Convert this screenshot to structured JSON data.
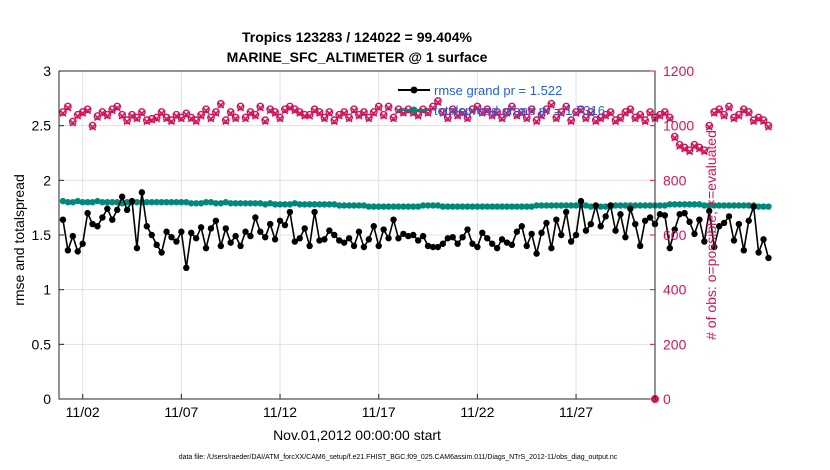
{
  "chart_data": {
    "type": "line",
    "title_line1": "Tropics 123283 / 124022 = 99.404%",
    "title_line2": "MARINE_SFC_ALTIMETER @ 1 surface",
    "xlabel": "Nov.01,2012 00:00:00 start",
    "ylabel_left": "rmse and totalspread",
    "ylabel_right": "# of obs: o=possible; ×=evaluated",
    "footer": "data file: /Users/raeder/DAI/ATM_forcXX/CAM6_setup/f.e21.FHIST_BGC.f09_025.CAM6assim.011/Diags_NTrS_2012-11/obs_diag_output.nc",
    "x_tick_labels": [
      "11/02",
      "11/07",
      "11/12",
      "11/17",
      "11/22",
      "11/27"
    ],
    "x_tick_days": [
      2,
      7,
      12,
      17,
      22,
      27
    ],
    "xlim_days": [
      0.8,
      31.0
    ],
    "ylim_left": [
      0,
      3
    ],
    "yticks_left": [
      "0",
      "0.5",
      "1",
      "1.5",
      "2",
      "2.5",
      "3"
    ],
    "ylim_right": [
      0,
      1200
    ],
    "yticks_right": [
      "0",
      "200",
      "400",
      "600",
      "800",
      "1000",
      "1200"
    ],
    "legend": {
      "placement": "top-right",
      "entries": [
        "rmse grand pr = 1.522",
        "totalspread grand pr = 1.7316"
      ]
    },
    "colors": {
      "rmse": "#000000",
      "totalspread": "#00897b",
      "obs": "#d4145a",
      "legend_text": "#1f5fe0",
      "grid": "#e0e0e0"
    },
    "samples_per_day": 4,
    "x_start_day": 1.0,
    "series": [
      {
        "name": "rmse",
        "axis": "left",
        "values": [
          1.64,
          1.36,
          1.49,
          1.35,
          1.42,
          1.7,
          1.6,
          1.58,
          1.66,
          1.74,
          1.64,
          1.73,
          1.85,
          1.73,
          1.81,
          1.38,
          1.89,
          1.58,
          1.5,
          1.41,
          1.34,
          1.53,
          1.48,
          1.44,
          1.53,
          1.2,
          1.52,
          1.47,
          1.57,
          1.38,
          1.56,
          1.63,
          1.4,
          1.56,
          1.43,
          1.49,
          1.4,
          1.53,
          1.49,
          1.66,
          1.53,
          1.48,
          1.6,
          1.46,
          1.63,
          1.59,
          1.71,
          1.44,
          1.47,
          1.56,
          1.4,
          1.71,
          1.45,
          1.46,
          1.54,
          1.5,
          1.45,
          1.43,
          1.47,
          1.4,
          1.53,
          1.39,
          1.46,
          1.58,
          1.4,
          1.55,
          1.47,
          1.64,
          1.47,
          1.51,
          1.49,
          1.5,
          1.45,
          1.49,
          1.4,
          1.39,
          1.39,
          1.42,
          1.47,
          1.48,
          1.42,
          1.48,
          1.55,
          1.42,
          1.39,
          1.52,
          1.47,
          1.42,
          1.38,
          1.46,
          1.43,
          1.41,
          1.53,
          1.58,
          1.4,
          1.51,
          1.33,
          1.52,
          1.61,
          1.38,
          1.64,
          1.5,
          1.71,
          1.44,
          1.5,
          1.81,
          1.54,
          1.6,
          1.77,
          1.58,
          1.67,
          1.77,
          1.54,
          1.69,
          1.48,
          1.74,
          1.6,
          1.4,
          1.63,
          1.66,
          1.6,
          1.69,
          1.68,
          1.38,
          1.55,
          1.69,
          1.7,
          1.62,
          1.51,
          1.64,
          1.44,
          1.72,
          1.39,
          1.58,
          1.61,
          1.67,
          1.45,
          1.6,
          1.36,
          1.63,
          1.76,
          1.34,
          1.46,
          1.29
        ],
        "markers": [
          1,
          1,
          1,
          1,
          1,
          1,
          1,
          1,
          1,
          1,
          1,
          1,
          1,
          1,
          1,
          1,
          1,
          1,
          1,
          1,
          1,
          1,
          1,
          1,
          1,
          1,
          1,
          1,
          1,
          1,
          1,
          1,
          1,
          1,
          1,
          1,
          1,
          1,
          1,
          1,
          1,
          1,
          1,
          1,
          1,
          1,
          1,
          1,
          1,
          1,
          1,
          1,
          1,
          1,
          1,
          1,
          1,
          1,
          1,
          1,
          1,
          1,
          1,
          1,
          1,
          1,
          1,
          1,
          1,
          1,
          1,
          1,
          1,
          1,
          1,
          1,
          1,
          1,
          1,
          1,
          1,
          1,
          1,
          1,
          1,
          1,
          1,
          1,
          1,
          1,
          1,
          1,
          1,
          1,
          1,
          1,
          1,
          1,
          1,
          1,
          1,
          1,
          1,
          1,
          1,
          1,
          1,
          1,
          1,
          1,
          1,
          1,
          1,
          1,
          1,
          1,
          1,
          1,
          1,
          1,
          1,
          1,
          1,
          1,
          1,
          1,
          1,
          1,
          1,
          1,
          1,
          1,
          1,
          1,
          1,
          1,
          1,
          1,
          1,
          1,
          1,
          1,
          1,
          1
        ]
      },
      {
        "name": "totalspread",
        "axis": "left",
        "values": [
          1.81,
          1.8,
          1.8,
          1.81,
          1.8,
          1.8,
          1.8,
          1.81,
          1.8,
          1.8,
          1.8,
          1.8,
          1.79,
          1.8,
          1.8,
          1.8,
          1.8,
          1.8,
          1.8,
          1.8,
          1.8,
          1.8,
          1.8,
          1.8,
          1.8,
          1.8,
          1.79,
          1.79,
          1.79,
          1.8,
          1.8,
          1.79,
          1.79,
          1.8,
          1.79,
          1.79,
          1.79,
          1.79,
          1.79,
          1.79,
          1.79,
          1.78,
          1.79,
          1.78,
          1.78,
          1.78,
          1.78,
          1.79,
          1.78,
          1.78,
          1.78,
          1.78,
          1.78,
          1.78,
          1.78,
          1.78,
          1.77,
          1.77,
          1.77,
          1.77,
          1.77,
          1.77,
          1.76,
          1.76,
          1.76,
          1.76,
          1.76,
          1.76,
          1.76,
          1.76,
          1.76,
          1.76,
          1.76,
          1.77,
          1.77,
          1.77,
          1.77,
          1.76,
          1.76,
          1.76,
          1.76,
          1.76,
          1.76,
          1.76,
          1.76,
          1.76,
          1.76,
          1.76,
          1.76,
          1.76,
          1.76,
          1.76,
          1.76,
          1.76,
          1.76,
          1.76,
          1.77,
          1.77,
          1.77,
          1.77,
          1.77,
          1.77,
          1.77,
          1.77,
          1.77,
          1.77,
          1.77,
          1.76,
          1.76,
          1.76,
          1.76,
          1.76,
          1.77,
          1.77,
          1.77,
          1.77,
          1.77,
          1.77,
          1.77,
          1.77,
          1.77,
          1.77,
          1.77,
          1.78,
          1.78,
          1.78,
          1.78,
          1.78,
          1.78,
          1.78,
          1.77,
          1.77,
          1.77,
          1.77,
          1.77,
          1.77,
          1.77,
          1.77,
          1.77,
          1.77,
          1.77,
          1.76,
          1.76,
          1.76
        ]
      },
      {
        "name": "obs_possible",
        "axis": "right",
        "values": [
          1050,
          1070,
          1015,
          1040,
          1050,
          1060,
          1000,
          1035,
          1050,
          1040,
          1060,
          1070,
          1040,
          1020,
          1040,
          1030,
          1050,
          1020,
          1025,
          1030,
          1050,
          1030,
          1020,
          1040,
          1030,
          1045,
          1030,
          1020,
          1040,
          1060,
          1030,
          1050,
          1080,
          1020,
          1050,
          1030,
          1070,
          1030,
          1050,
          1040,
          1070,
          1020,
          1060,
          1050,
          1030,
          1060,
          1070,
          1060,
          1050,
          1040,
          1040,
          1060,
          1050,
          1030,
          1050,
          1020,
          1040,
          1050,
          1030,
          1060,
          1040,
          1050,
          1030,
          1050,
          1070,
          1040,
          1070,
          1030,
          1060,
          1050,
          1060,
          1050,
          1040,
          1060,
          1050,
          1070,
          1090,
          1050,
          1030,
          1060,
          1040,
          1050,
          1030,
          1060,
          1070,
          1050,
          1060,
          1040,
          1050,
          1030,
          1050,
          1070,
          1040,
          1050,
          1030,
          1060,
          1020,
          1040,
          1060,
          1080,
          1030,
          1050,
          1070,
          1020,
          1050,
          1060,
          1030,
          1050,
          1020,
          1030,
          1040,
          1050,
          1020,
          1030,
          1050,
          1060,
          1030,
          1040,
          1020,
          1050,
          1030,
          1040,
          1050,
          1030,
          960,
          930,
          920,
          910,
          930,
          920,
          910,
          1000,
          1050,
          1060,
          1040,
          1070,
          1030,
          1040,
          1060,
          1050,
          1020,
          1030,
          1020,
          1000
        ]
      },
      {
        "name": "obs_evaluated",
        "axis": "right",
        "values": [
          1045,
          1065,
          1010,
          1035,
          1045,
          1055,
          995,
          1030,
          1045,
          1035,
          1055,
          1065,
          1035,
          1015,
          1035,
          1025,
          1045,
          1015,
          1020,
          1025,
          1045,
          1025,
          1015,
          1035,
          1025,
          1040,
          1025,
          1015,
          1035,
          1055,
          1025,
          1045,
          1075,
          1015,
          1045,
          1025,
          1065,
          1025,
          1045,
          1035,
          1065,
          1015,
          1055,
          1045,
          1025,
          1055,
          1065,
          1055,
          1045,
          1035,
          1035,
          1055,
          1045,
          1025,
          1045,
          1015,
          1035,
          1045,
          1025,
          1055,
          1035,
          1045,
          1025,
          1045,
          1065,
          1035,
          1065,
          1025,
          1055,
          1045,
          1055,
          1045,
          1035,
          1055,
          1045,
          1065,
          1085,
          1045,
          1025,
          1055,
          1035,
          1045,
          1025,
          1055,
          1065,
          1045,
          1055,
          1035,
          1045,
          1025,
          1045,
          1065,
          1035,
          1045,
          1025,
          1055,
          1015,
          1035,
          1055,
          1075,
          1025,
          1045,
          1065,
          1015,
          1045,
          1055,
          1025,
          1045,
          1015,
          1025,
          1035,
          1045,
          1015,
          1025,
          1045,
          1055,
          1025,
          1035,
          1015,
          1045,
          1025,
          1035,
          1045,
          1025,
          955,
          925,
          915,
          905,
          925,
          915,
          905,
          995,
          1045,
          1055,
          1035,
          1065,
          1025,
          1035,
          1055,
          1045,
          1015,
          1025,
          1015,
          995
        ]
      },
      {
        "name": "obs_last",
        "axis": "right",
        "x_day": 31.0,
        "value": 0
      }
    ]
  }
}
